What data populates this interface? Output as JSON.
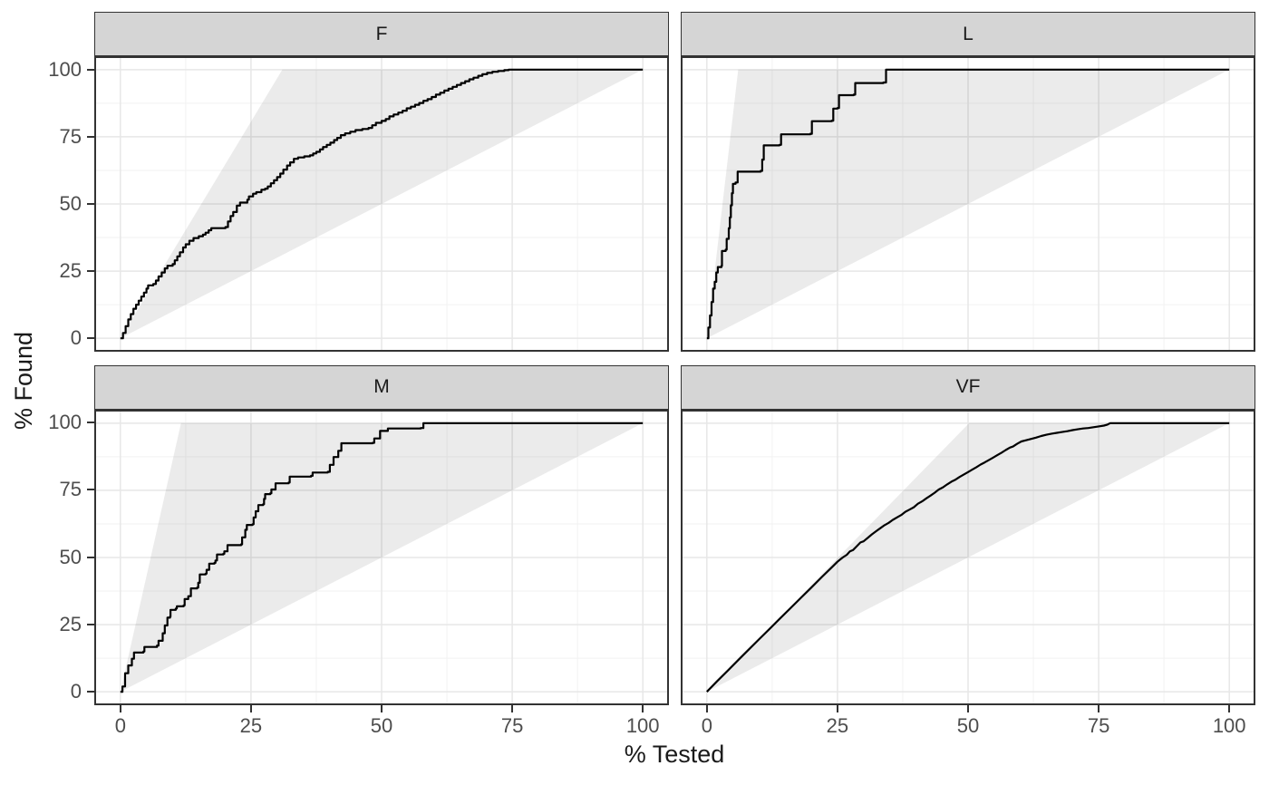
{
  "chart_data": {
    "type": "line",
    "title": "",
    "xlabel": "% Tested",
    "ylabel": "% Found",
    "x_ticks": [
      0,
      25,
      50,
      75,
      100
    ],
    "y_ticks": [
      0,
      25,
      50,
      75,
      100
    ],
    "xlim": [
      -5,
      105
    ],
    "ylim": [
      -5,
      105
    ],
    "grid": true,
    "legend": "none",
    "colors": {
      "curve": "#000000",
      "band_fill": "rgba(0,0,0,0.08)",
      "grid_major": "#e7e7e7",
      "grid_minor": "#f2f2f2",
      "panel_border": "#333333",
      "strip_fill": "#d5d5d5",
      "tick_mark": "#333333",
      "tick_label": "#4d4d4d",
      "axis_title": "#1a1a1a"
    },
    "facets": [
      {
        "label": "F",
        "interpolation": "step",
        "band": [
          [
            0,
            0
          ],
          [
            31,
            100
          ],
          [
            100,
            100
          ]
        ],
        "points": [
          [
            0,
            0
          ],
          [
            0.5,
            2
          ],
          [
            1,
            4.5
          ],
          [
            1.5,
            7
          ],
          [
            2,
            9
          ],
          [
            2.5,
            11
          ],
          [
            3,
            12.5
          ],
          [
            3.5,
            14
          ],
          [
            4,
            15.5
          ],
          [
            4.5,
            17
          ],
          [
            5,
            18.5
          ],
          [
            5.3,
            19.7
          ],
          [
            6.3,
            20.2
          ],
          [
            6.8,
            21.5
          ],
          [
            7.3,
            23
          ],
          [
            7.9,
            24.5
          ],
          [
            8.5,
            26
          ],
          [
            9,
            27
          ],
          [
            10,
            27.6
          ],
          [
            10.4,
            29
          ],
          [
            10.9,
            30.5
          ],
          [
            11.4,
            32
          ],
          [
            12,
            33.8
          ],
          [
            12.5,
            35
          ],
          [
            13.2,
            36.3
          ],
          [
            14,
            37.3
          ],
          [
            15,
            38
          ],
          [
            15.8,
            38.6
          ],
          [
            16.3,
            39.3
          ],
          [
            16.9,
            40.2
          ],
          [
            17.4,
            41
          ],
          [
            20.1,
            41.4
          ],
          [
            20.6,
            43.5
          ],
          [
            21.1,
            45.5
          ],
          [
            21.6,
            47
          ],
          [
            22.3,
            49.4
          ],
          [
            22.9,
            50.5
          ],
          [
            24.3,
            51.6
          ],
          [
            24.6,
            52.8
          ],
          [
            25.4,
            53.8
          ],
          [
            26,
            54.4
          ],
          [
            27,
            55.3
          ],
          [
            27.7,
            55.7
          ],
          [
            28.2,
            56.5
          ],
          [
            28.8,
            57.7
          ],
          [
            29.4,
            58.8
          ],
          [
            30,
            60
          ],
          [
            30.6,
            61.3
          ],
          [
            31.2,
            62.8
          ],
          [
            31.9,
            64.3
          ],
          [
            32.5,
            65.5
          ],
          [
            33.2,
            66.8
          ],
          [
            34,
            67.3
          ],
          [
            35.2,
            67.7
          ],
          [
            36.3,
            68.1
          ],
          [
            36.9,
            68.8
          ],
          [
            37.5,
            69.4
          ],
          [
            38.2,
            70.3
          ],
          [
            38.8,
            71.2
          ],
          [
            39.5,
            72
          ],
          [
            40.2,
            72.8
          ],
          [
            40.9,
            73.8
          ],
          [
            41.5,
            74.6
          ],
          [
            42.2,
            75.6
          ],
          [
            43,
            76.3
          ],
          [
            44,
            76.9
          ],
          [
            45,
            77.5
          ],
          [
            46.3,
            77.9
          ],
          [
            47.5,
            78.3
          ],
          [
            48.2,
            79.3
          ],
          [
            48.9,
            80.2
          ],
          [
            50,
            80.9
          ],
          [
            50.8,
            81.6
          ],
          [
            51.5,
            82.6
          ],
          [
            52.3,
            83.3
          ],
          [
            53.2,
            84
          ],
          [
            54,
            84.7
          ],
          [
            54.8,
            85.6
          ],
          [
            55.6,
            86.2
          ],
          [
            56.4,
            86.9
          ],
          [
            57.2,
            87.6
          ],
          [
            58,
            88.4
          ],
          [
            58.8,
            89
          ],
          [
            59.6,
            89.8
          ],
          [
            60.4,
            90.7
          ],
          [
            61.2,
            91.4
          ],
          [
            62,
            92.2
          ],
          [
            62.8,
            92.9
          ],
          [
            63.6,
            93.6
          ],
          [
            64.4,
            94.3
          ],
          [
            65.2,
            95
          ],
          [
            66,
            95.7
          ],
          [
            66.8,
            96.4
          ],
          [
            67.6,
            97
          ],
          [
            68.5,
            97.7
          ],
          [
            69.3,
            98.3
          ],
          [
            70.2,
            98.8
          ],
          [
            71.2,
            99.2
          ],
          [
            72.3,
            99.5
          ],
          [
            73.5,
            99.8
          ],
          [
            74.3,
            100
          ],
          [
            100,
            100
          ]
        ]
      },
      {
        "label": "L",
        "interpolation": "step",
        "band": [
          [
            0,
            0
          ],
          [
            6,
            100
          ],
          [
            100,
            100
          ]
        ],
        "points": [
          [
            0,
            0
          ],
          [
            0.3,
            4
          ],
          [
            0.6,
            8.5
          ],
          [
            0.9,
            13.5
          ],
          [
            1.2,
            18.5
          ],
          [
            1.5,
            21
          ],
          [
            1.8,
            24.5
          ],
          [
            2.1,
            26.5
          ],
          [
            2.8,
            27
          ],
          [
            2.9,
            32.5
          ],
          [
            3.6,
            33
          ],
          [
            3.8,
            37
          ],
          [
            4.2,
            41
          ],
          [
            4.4,
            45
          ],
          [
            4.6,
            49.5
          ],
          [
            4.8,
            54
          ],
          [
            5,
            57.5
          ],
          [
            5.5,
            58
          ],
          [
            5.9,
            62
          ],
          [
            10.3,
            62.3
          ],
          [
            10.6,
            66.5
          ],
          [
            10.9,
            71.8
          ],
          [
            13.9,
            72
          ],
          [
            14.2,
            75.9
          ],
          [
            19.8,
            76.1
          ],
          [
            20.1,
            80.8
          ],
          [
            23.9,
            81
          ],
          [
            24.2,
            85.5
          ],
          [
            25,
            85.7
          ],
          [
            25.3,
            90.5
          ],
          [
            28.1,
            90.7
          ],
          [
            28.4,
            95
          ],
          [
            33.8,
            95.2
          ],
          [
            34.3,
            100
          ],
          [
            100,
            100
          ]
        ]
      },
      {
        "label": "M",
        "interpolation": "step",
        "band": [
          [
            0,
            0
          ],
          [
            11.6,
            100
          ],
          [
            100,
            100
          ]
        ],
        "points": [
          [
            0,
            0
          ],
          [
            0.4,
            2
          ],
          [
            0.9,
            6.9
          ],
          [
            1.5,
            9.8
          ],
          [
            2.2,
            12.3
          ],
          [
            2.6,
            14.6
          ],
          [
            4.4,
            15
          ],
          [
            4.6,
            16.7
          ],
          [
            7,
            17.2
          ],
          [
            7.3,
            19
          ],
          [
            8.1,
            21.8
          ],
          [
            8.5,
            24.7
          ],
          [
            9,
            27.6
          ],
          [
            9.5,
            28
          ],
          [
            9.6,
            30.5
          ],
          [
            10.6,
            31
          ],
          [
            10.8,
            31.8
          ],
          [
            12.1,
            32.2
          ],
          [
            12.3,
            34.5
          ],
          [
            13,
            35.6
          ],
          [
            13.5,
            38.5
          ],
          [
            14.7,
            38.8
          ],
          [
            14.9,
            40.6
          ],
          [
            15.2,
            43.7
          ],
          [
            16.3,
            44
          ],
          [
            16.5,
            45.4
          ],
          [
            17,
            47.7
          ],
          [
            18,
            48
          ],
          [
            18.2,
            48.9
          ],
          [
            18.5,
            51.1
          ],
          [
            19.7,
            51.4
          ],
          [
            19.9,
            52.3
          ],
          [
            20.5,
            54.6
          ],
          [
            23.1,
            54.9
          ],
          [
            23.3,
            57.5
          ],
          [
            23.9,
            60.3
          ],
          [
            24.2,
            62.1
          ],
          [
            25.3,
            62.4
          ],
          [
            25.5,
            64.9
          ],
          [
            25.9,
            67.2
          ],
          [
            26.4,
            69.5
          ],
          [
            27.3,
            69.8
          ],
          [
            27.5,
            71.8
          ],
          [
            27.7,
            73.6
          ],
          [
            28.7,
            73.9
          ],
          [
            28.9,
            75.3
          ],
          [
            29.7,
            77.6
          ],
          [
            32.2,
            77.9
          ],
          [
            32.4,
            80.1
          ],
          [
            36.5,
            80.4
          ],
          [
            36.8,
            81.6
          ],
          [
            39.7,
            81.9
          ],
          [
            40.1,
            84.5
          ],
          [
            40.8,
            87.4
          ],
          [
            41.7,
            89.7
          ],
          [
            42.3,
            92.5
          ],
          [
            48.3,
            92.7
          ],
          [
            48.6,
            94.3
          ],
          [
            49.7,
            97.1
          ],
          [
            51.2,
            98
          ],
          [
            57.5,
            98.2
          ],
          [
            58,
            100
          ],
          [
            100,
            100
          ]
        ]
      },
      {
        "label": "VF",
        "interpolation": "linear",
        "band": [
          [
            0,
            0
          ],
          [
            50.2,
            100
          ],
          [
            100,
            100
          ]
        ],
        "points": [
          [
            0,
            0
          ],
          [
            2,
            4
          ],
          [
            4,
            7.9
          ],
          [
            6,
            11.8
          ],
          [
            8,
            15.7
          ],
          [
            10,
            19.6
          ],
          [
            12,
            23.4
          ],
          [
            14,
            27.3
          ],
          [
            16,
            31.1
          ],
          [
            18,
            35
          ],
          [
            20,
            38.8
          ],
          [
            22,
            42.7
          ],
          [
            24,
            46.5
          ],
          [
            25,
            48.4
          ],
          [
            26,
            50
          ],
          [
            26.8,
            51
          ],
          [
            27.4,
            52.3
          ],
          [
            28,
            52.8
          ],
          [
            28.6,
            54
          ],
          [
            29.4,
            55.6
          ],
          [
            30,
            56
          ],
          [
            30.8,
            57.3
          ],
          [
            31.6,
            58.6
          ],
          [
            32.4,
            59.8
          ],
          [
            33.2,
            60.9
          ],
          [
            34,
            62
          ],
          [
            34.8,
            62.9
          ],
          [
            35.6,
            64
          ],
          [
            36.4,
            64.9
          ],
          [
            37.2,
            65.8
          ],
          [
            38,
            67
          ],
          [
            38.8,
            67.8
          ],
          [
            39.6,
            68.7
          ],
          [
            40.4,
            70
          ],
          [
            41.2,
            70.9
          ],
          [
            42,
            72
          ],
          [
            42.8,
            73
          ],
          [
            43.6,
            74.1
          ],
          [
            44.4,
            75.3
          ],
          [
            45.2,
            76.1
          ],
          [
            46,
            77.2
          ],
          [
            46.8,
            78.2
          ],
          [
            47.6,
            79
          ],
          [
            48.4,
            80
          ],
          [
            49.2,
            80.9
          ],
          [
            50,
            81.8
          ],
          [
            50.8,
            82.7
          ],
          [
            51.6,
            83.6
          ],
          [
            52.4,
            84.6
          ],
          [
            53.2,
            85.4
          ],
          [
            54,
            86.3
          ],
          [
            54.8,
            87.2
          ],
          [
            55.6,
            88.1
          ],
          [
            56.4,
            89
          ],
          [
            57.2,
            90
          ],
          [
            58,
            90.9
          ],
          [
            58.6,
            91.3
          ],
          [
            59.4,
            92.3
          ],
          [
            60.2,
            93.2
          ],
          [
            61,
            93.6
          ],
          [
            62,
            94.1
          ],
          [
            63,
            94.6
          ],
          [
            64,
            95.2
          ],
          [
            65,
            95.7
          ],
          [
            66,
            96.1
          ],
          [
            67,
            96.4
          ],
          [
            68,
            96.7
          ],
          [
            69,
            97
          ],
          [
            70,
            97.4
          ],
          [
            71,
            97.7
          ],
          [
            72,
            98
          ],
          [
            73,
            98.2
          ],
          [
            74,
            98.5
          ],
          [
            75,
            98.8
          ],
          [
            76,
            99.1
          ],
          [
            76.6,
            99.4
          ],
          [
            77.2,
            100
          ],
          [
            100,
            100
          ]
        ]
      }
    ]
  }
}
